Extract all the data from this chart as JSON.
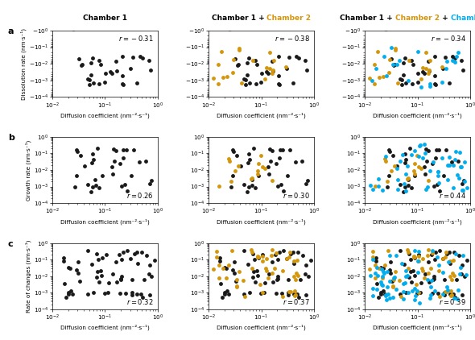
{
  "col_titles_parts": [
    [
      {
        "text": "Chamber 1",
        "color": "black"
      }
    ],
    [
      {
        "text": "Chamber 1",
        "color": "black"
      },
      {
        "text": " + ",
        "color": "black"
      },
      {
        "text": "Chamber 2",
        "color": "#D4960A"
      }
    ],
    [
      {
        "text": "Chamber 1",
        "color": "black"
      },
      {
        "text": " + ",
        "color": "black"
      },
      {
        "text": "Chamber 2",
        "color": "#D4960A"
      },
      {
        "text": " + ",
        "color": "black"
      },
      {
        "text": "Chamber 3",
        "color": "#00AEEF"
      }
    ]
  ],
  "row_labels": [
    "a",
    "b",
    "c"
  ],
  "ylabels": [
    "Dissolution rate (nm·s⁻¹)",
    "Growth rate (nm·s⁻¹)",
    "Rate of changes (nm·s⁻¹)"
  ],
  "xlabel": "Diffusion coefficient (nm⁻²·s⁻¹)",
  "r_values": [
    [
      -0.31,
      -0.38,
      -0.34
    ],
    [
      0.26,
      0.3,
      0.44
    ],
    [
      0.32,
      0.37,
      0.39
    ]
  ],
  "xlim": [
    0.01,
    1.0
  ],
  "ylim": [
    0.0001,
    1.0
  ],
  "ch1_color": "#1a1a1a",
  "ch2_color": "#D4960A",
  "ch3_color": "#00AEEF",
  "marker_size": 3.5,
  "bg_color": "white",
  "seed": 42
}
